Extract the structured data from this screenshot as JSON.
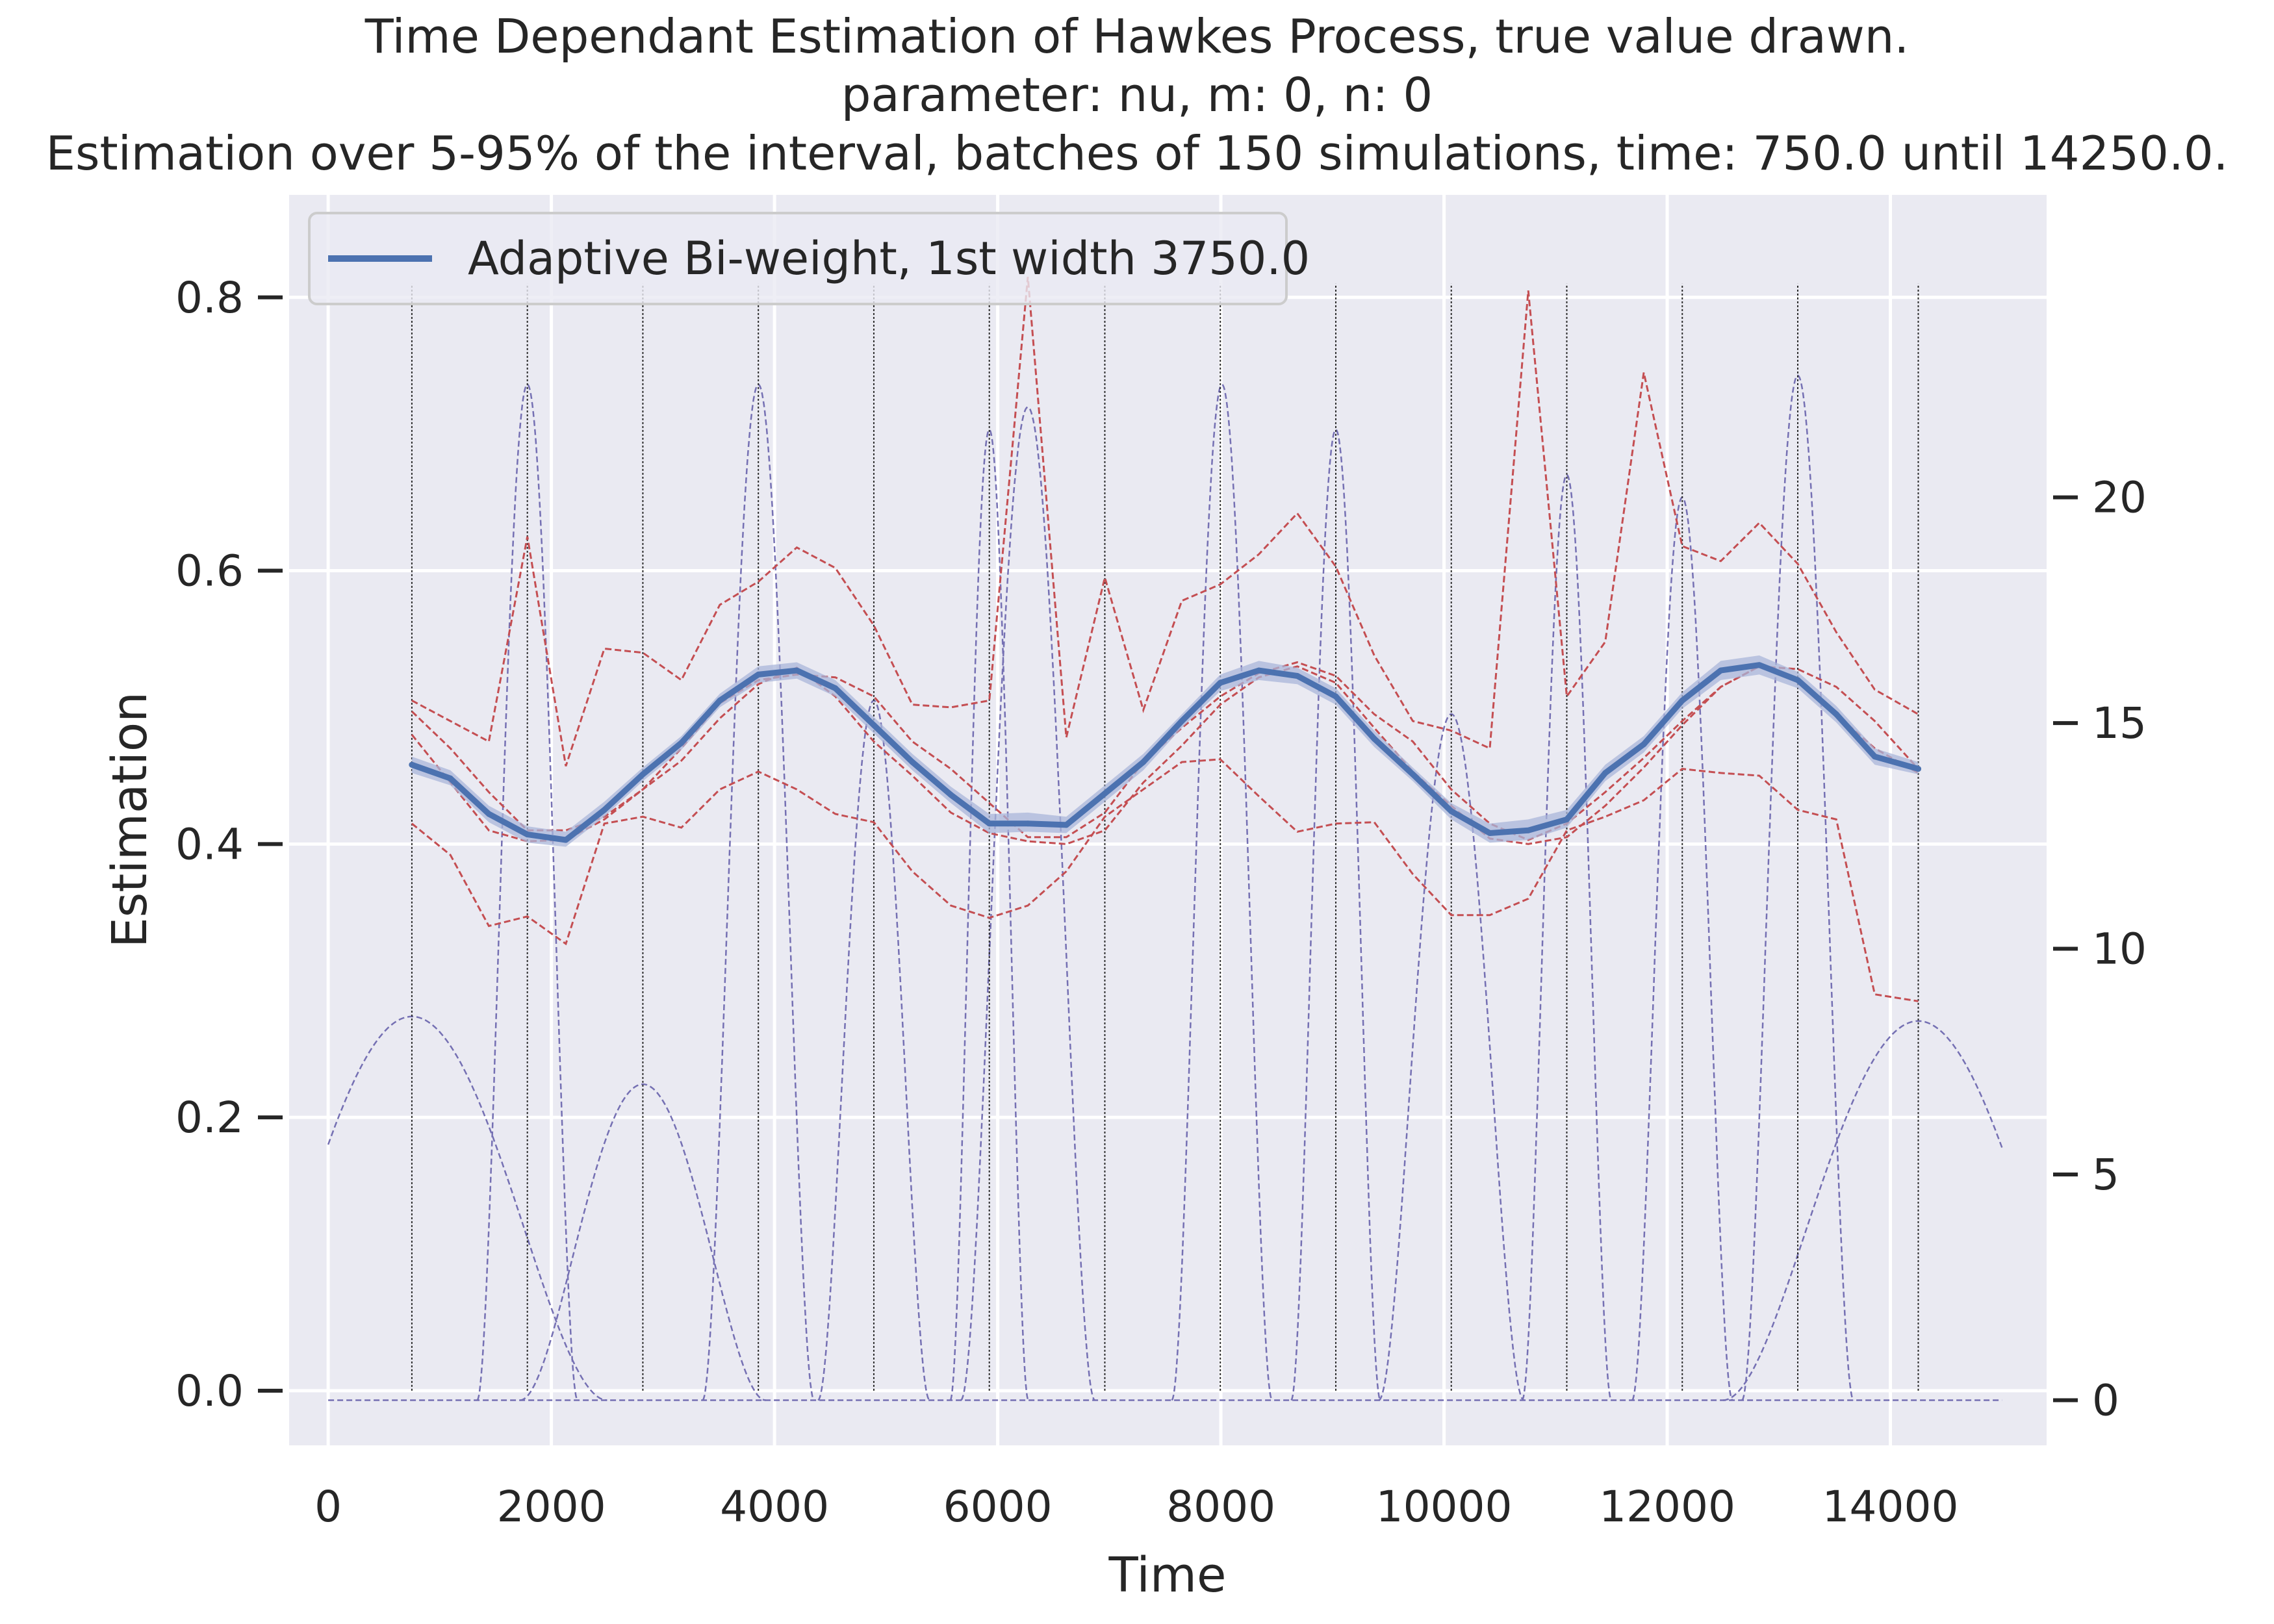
{
  "title_lines": [
    "Time Dependant Estimation of Hawkes Process, true value drawn.",
    "parameter: nu, m: 0, n: 0",
    "Estimation over 5-95% of the interval, batches of 150 simulations, time: 750.0 until 14250.0."
  ],
  "colors": {
    "background": "#EAEAF2",
    "grid": "#FFFFFF",
    "estimate": "#4C72B0",
    "band": "#A9B6D9",
    "quantile": "#C44E52",
    "kernel": "#7570B3",
    "vline": "#262626",
    "text": "#262626"
  },
  "chart_data": {
    "type": "line",
    "xlabel": "Time",
    "ylabel": "Estimation",
    "xlim": [
      -350,
      15400
    ],
    "ylim": [
      -0.04,
      0.875
    ],
    "y2lim": [
      -1.0,
      26.7
    ],
    "xticks": [
      0,
      2000,
      4000,
      6000,
      8000,
      10000,
      12000,
      14000
    ],
    "yticks": [
      0.0,
      0.2,
      0.4,
      0.6,
      0.8
    ],
    "y2ticks": [
      0,
      5,
      10,
      15,
      20
    ],
    "legend_position": "upper left",
    "grid": true,
    "x": [
      750,
      1095,
      1440,
      1785,
      2130,
      2475,
      2820,
      3165,
      3510,
      3855,
      4200,
      4545,
      4890,
      5235,
      5580,
      5925,
      6270,
      6615,
      6960,
      7305,
      7650,
      7995,
      8340,
      8685,
      9030,
      9375,
      9720,
      10065,
      10410,
      10755,
      11100,
      11445,
      11790,
      12135,
      12480,
      12825,
      13170,
      13515,
      13860,
      14250
    ],
    "series": [
      {
        "name": "Adaptive Bi-weight, 1st width 3750.0",
        "role": "estimate",
        "values": [
          0.458,
          0.448,
          0.422,
          0.407,
          0.403,
          0.425,
          0.451,
          0.474,
          0.505,
          0.524,
          0.527,
          0.514,
          0.487,
          0.46,
          0.436,
          0.415,
          0.415,
          0.414,
          0.437,
          0.46,
          0.49,
          0.518,
          0.527,
          0.523,
          0.508,
          0.477,
          0.451,
          0.424,
          0.408,
          0.41,
          0.418,
          0.452,
          0.473,
          0.505,
          0.527,
          0.531,
          0.52,
          0.495,
          0.464,
          0.455
        ],
        "band_low": [
          0.452,
          0.443,
          0.416,
          0.401,
          0.398,
          0.42,
          0.446,
          0.469,
          0.5,
          0.518,
          0.521,
          0.508,
          0.481,
          0.454,
          0.43,
          0.408,
          0.409,
          0.408,
          0.431,
          0.454,
          0.485,
          0.512,
          0.52,
          0.517,
          0.502,
          0.471,
          0.446,
          0.418,
          0.401,
          0.403,
          0.412,
          0.446,
          0.467,
          0.499,
          0.52,
          0.524,
          0.514,
          0.489,
          0.458,
          0.451
        ],
        "band_high": [
          0.464,
          0.454,
          0.428,
          0.413,
          0.409,
          0.431,
          0.456,
          0.479,
          0.51,
          0.53,
          0.533,
          0.52,
          0.493,
          0.466,
          0.442,
          0.422,
          0.423,
          0.42,
          0.443,
          0.466,
          0.495,
          0.524,
          0.534,
          0.529,
          0.514,
          0.483,
          0.456,
          0.43,
          0.415,
          0.418,
          0.425,
          0.458,
          0.479,
          0.511,
          0.534,
          0.538,
          0.526,
          0.501,
          0.47,
          0.46
        ]
      },
      {
        "role": "quantile",
        "values": [
          0.505,
          0.49,
          0.475,
          0.625,
          0.457,
          0.543,
          0.54,
          0.52,
          0.575,
          0.592,
          0.617,
          0.602,
          0.56,
          0.502,
          0.5,
          0.505,
          0.815,
          0.478,
          0.595,
          0.498,
          0.578,
          0.59,
          0.612,
          0.642,
          0.603,
          0.538,
          0.49,
          0.483,
          0.47,
          0.805,
          0.508,
          0.548,
          0.745,
          0.618,
          0.607,
          0.635,
          0.605,
          0.555,
          0.513,
          0.495
        ]
      },
      {
        "role": "quantile",
        "values": [
          0.497,
          0.47,
          0.438,
          0.41,
          0.41,
          0.42,
          0.44,
          0.47,
          0.503,
          0.52,
          0.524,
          0.522,
          0.508,
          0.475,
          0.455,
          0.43,
          0.405,
          0.405,
          0.423,
          0.46,
          0.485,
          0.508,
          0.525,
          0.533,
          0.523,
          0.495,
          0.475,
          0.44,
          0.415,
          0.403,
          0.415,
          0.438,
          0.463,
          0.49,
          0.515,
          0.53,
          0.528,
          0.515,
          0.49,
          0.455
        ]
      },
      {
        "role": "quantile",
        "values": [
          0.48,
          0.445,
          0.41,
          0.402,
          0.403,
          0.418,
          0.44,
          0.461,
          0.492,
          0.517,
          0.529,
          0.508,
          0.475,
          0.45,
          0.423,
          0.408,
          0.402,
          0.4,
          0.41,
          0.445,
          0.472,
          0.502,
          0.522,
          0.53,
          0.518,
          0.485,
          0.453,
          0.428,
          0.404,
          0.4,
          0.405,
          0.428,
          0.456,
          0.487,
          0.515,
          0.53,
          0.52,
          0.495,
          0.47,
          0.452
        ]
      },
      {
        "role": "quantile",
        "values": [
          0.415,
          0.392,
          0.34,
          0.347,
          0.327,
          0.415,
          0.42,
          0.412,
          0.44,
          0.453,
          0.44,
          0.422,
          0.416,
          0.38,
          0.355,
          0.346,
          0.355,
          0.38,
          0.42,
          0.44,
          0.46,
          0.462,
          0.435,
          0.409,
          0.415,
          0.416,
          0.378,
          0.348,
          0.348,
          0.36,
          0.41,
          0.42,
          0.432,
          0.455,
          0.452,
          0.45,
          0.425,
          0.418,
          0.29,
          0.285
        ]
      }
    ],
    "kernels_right_axis": [
      {
        "center": 750,
        "half_width": 1750,
        "peak": 8.5
      },
      {
        "center": 1785,
        "half_width": 450,
        "peak": 22.5
      },
      {
        "center": 2820,
        "half_width": 1100,
        "peak": 7.0
      },
      {
        "center": 3855,
        "half_width": 500,
        "peak": 22.5
      },
      {
        "center": 4890,
        "half_width": 500,
        "peak": 15.5
      },
      {
        "center": 5925,
        "half_width": 350,
        "peak": 21.5
      },
      {
        "center": 6270,
        "half_width": 600,
        "peak": 22.0
      },
      {
        "center": 8010,
        "half_width": 450,
        "peak": 22.5
      },
      {
        "center": 9030,
        "half_width": 400,
        "peak": 21.5
      },
      {
        "center": 10065,
        "half_width": 650,
        "peak": 15.2
      },
      {
        "center": 11100,
        "half_width": 400,
        "peak": 20.5
      },
      {
        "center": 12135,
        "half_width": 450,
        "peak": 20.0
      },
      {
        "center": 13170,
        "half_width": 500,
        "peak": 22.7
      },
      {
        "center": 14250,
        "half_width": 1750,
        "peak": 8.4
      }
    ],
    "vertical_lines": [
      750,
      1785,
      2820,
      3855,
      4890,
      5925,
      6960,
      7995,
      9030,
      10065,
      11100,
      12135,
      13170,
      14250
    ]
  }
}
